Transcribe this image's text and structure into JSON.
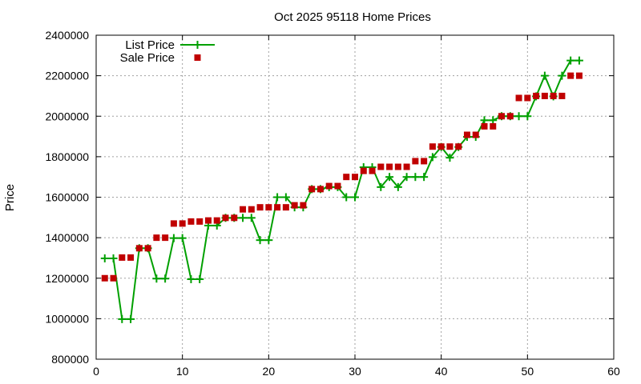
{
  "chart_data": {
    "type": "line",
    "title": "Oct 2025 95118 Home Prices",
    "xlabel": "",
    "ylabel": "Price",
    "xlim": [
      0,
      60
    ],
    "ylim": [
      800000,
      2400000
    ],
    "xticks": [
      0,
      10,
      20,
      30,
      40,
      50,
      60
    ],
    "yticks": [
      800000,
      1000000,
      1200000,
      1400000,
      1600000,
      1800000,
      2000000,
      2200000,
      2400000
    ],
    "grid": true,
    "legend_position": "top-left",
    "series": [
      {
        "name": "List Price",
        "style": "line-plus",
        "color": "#00a000",
        "x": [
          1,
          2,
          3,
          4,
          5,
          6,
          7,
          8,
          9,
          10,
          11,
          12,
          13,
          14,
          15,
          16,
          17,
          18,
          19,
          20,
          21,
          22,
          23,
          24,
          25,
          26,
          27,
          28,
          29,
          30,
          31,
          32,
          33,
          34,
          35,
          36,
          37,
          38,
          39,
          40,
          41,
          42,
          43,
          44,
          45,
          46,
          47,
          48,
          49,
          50,
          51,
          52,
          53,
          54,
          55,
          56
        ],
        "y": [
          1298000,
          1298000,
          998000,
          998000,
          1348000,
          1348000,
          1198000,
          1198000,
          1398000,
          1398000,
          1195000,
          1195000,
          1460000,
          1460000,
          1498000,
          1498000,
          1498000,
          1498000,
          1388000,
          1388000,
          1600000,
          1600000,
          1550000,
          1550000,
          1640000,
          1640000,
          1650000,
          1650000,
          1600000,
          1600000,
          1748000,
          1748000,
          1650000,
          1700000,
          1650000,
          1700000,
          1700000,
          1700000,
          1798000,
          1848000,
          1795000,
          1848000,
          1898000,
          1898000,
          1980000,
          1980000,
          2000000,
          2000000,
          2000000,
          2000000,
          2098000,
          2200000,
          2098000,
          2200000,
          2275000,
          2275000
        ]
      },
      {
        "name": "Sale Price",
        "style": "square",
        "color": "#c00000",
        "x": [
          1,
          2,
          3,
          4,
          5,
          6,
          7,
          8,
          9,
          10,
          11,
          12,
          13,
          14,
          15,
          16,
          17,
          18,
          19,
          20,
          21,
          22,
          23,
          24,
          25,
          26,
          27,
          28,
          29,
          30,
          31,
          32,
          33,
          34,
          35,
          36,
          37,
          38,
          39,
          40,
          41,
          42,
          43,
          44,
          45,
          46,
          47,
          48,
          49,
          50,
          51,
          52,
          53,
          54,
          55,
          56
        ],
        "y": [
          1200000,
          1200000,
          1302000,
          1302000,
          1348000,
          1348000,
          1400000,
          1400000,
          1470000,
          1470000,
          1480000,
          1480000,
          1485000,
          1485000,
          1498000,
          1498000,
          1540000,
          1540000,
          1550000,
          1550000,
          1550000,
          1550000,
          1560000,
          1560000,
          1640000,
          1640000,
          1655000,
          1655000,
          1700000,
          1700000,
          1730000,
          1730000,
          1750000,
          1750000,
          1750000,
          1750000,
          1778000,
          1778000,
          1850000,
          1850000,
          1850000,
          1850000,
          1908000,
          1908000,
          1950000,
          1950000,
          2000000,
          2000000,
          2090000,
          2090000,
          2100000,
          2100000,
          2100000,
          2100000,
          2200000,
          2200000
        ]
      }
    ]
  }
}
